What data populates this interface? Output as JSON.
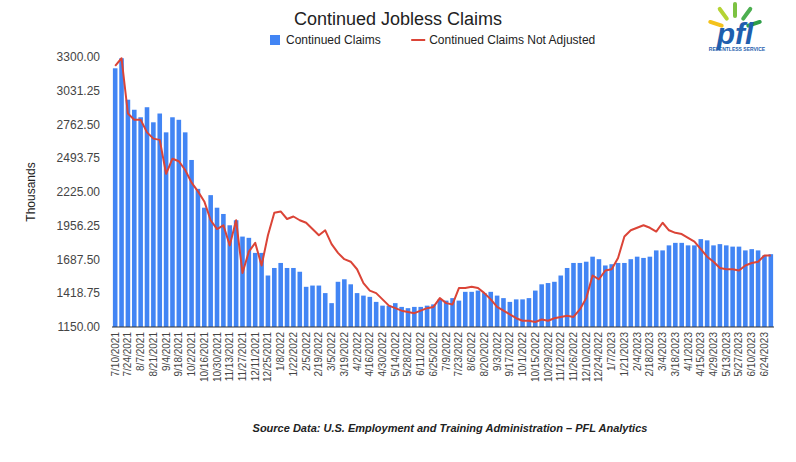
{
  "chart_data": {
    "type": "bar",
    "title": "Continued Jobless Claims",
    "y_label": "Thousands",
    "annotations": [
      "Source Data: U.S. Employment and Training Administration – PFL Analytics",
      "pfl",
      "RELENTLESS SERVICE"
    ],
    "categories": [
      "7/10/2021",
      null,
      "7/24/2021",
      null,
      "8/7/2021",
      null,
      "8/21/2021",
      null,
      "9/4/2021",
      null,
      "9/18/2021",
      null,
      "10/2/2021",
      null,
      "10/16/2021",
      null,
      "10/30/2021",
      null,
      "11/13/2021",
      null,
      "11/27/2021",
      null,
      "12/11/2021",
      null,
      "12/25/2021",
      null,
      "1/8/2022",
      null,
      "1/22/2022",
      null,
      "2/5/2022",
      null,
      "2/19/2022",
      null,
      "3/5/2022",
      null,
      "3/19/2022",
      null,
      "4/2/2022",
      null,
      "4/16/2022",
      null,
      "4/30/2022",
      null,
      "5/14/2022",
      null,
      "5/28/2022",
      null,
      "6/11/2022",
      null,
      "6/25/2022",
      null,
      "7/9/2022",
      null,
      "7/23/2022",
      null,
      "8/6/2022",
      null,
      "8/20/2022",
      null,
      "9/3/2022",
      null,
      "9/17/2022",
      null,
      "10/1/2022",
      null,
      "10/15/2022",
      null,
      "10/29/2022",
      null,
      "11/12/2022",
      null,
      "11/26/2022",
      null,
      "12/10/2022",
      null,
      "12/24/2022",
      null,
      "1/7/2023",
      null,
      "1/21/2023",
      null,
      "2/4/2023",
      null,
      "2/18/2023",
      null,
      "3/4/2023",
      null,
      "3/18/2023",
      null,
      "4/1/2023",
      null,
      "4/15/2023",
      null,
      "4/29/2023",
      null,
      "5/13/2023",
      null,
      "5/27/2023",
      null,
      "6/10/2023",
      null,
      "6/24/2023",
      null
    ],
    "series": [
      {
        "name": "Continued Claims",
        "type": "bar",
        "color": "#4285f4",
        "values": [
          3210,
          3290,
          2960,
          2880,
          2820,
          2900,
          2780,
          2850,
          2700,
          2820,
          2800,
          2700,
          2480,
          2250,
          2100,
          2200,
          2100,
          2050,
          1960,
          2000,
          1870,
          1860,
          1740,
          1740,
          1560,
          1620,
          1660,
          1620,
          1620,
          1590,
          1470,
          1480,
          1480,
          1420,
          1340,
          1510,
          1530,
          1490,
          1420,
          1400,
          1390,
          1350,
          1320,
          1320,
          1340,
          1310,
          1300,
          1310,
          1310,
          1320,
          1330,
          1370,
          1360,
          1380,
          1360,
          1430,
          1430,
          1440,
          1420,
          1430,
          1400,
          1380,
          1350,
          1370,
          1370,
          1380,
          1440,
          1490,
          1500,
          1510,
          1560,
          1620,
          1660,
          1660,
          1670,
          1710,
          1690,
          1640,
          1650,
          1660,
          1660,
          1690,
          1710,
          1700,
          1710,
          1760,
          1760,
          1800,
          1820,
          1820,
          1800,
          1800,
          1850,
          1840,
          1800,
          1810,
          1800,
          1790,
          1790,
          1760,
          1770,
          1760,
          1720,
          1730
        ]
      },
      {
        "name": "Continued Claims Not Adjusted",
        "type": "line",
        "color": "#db4437",
        "values": [
          3230,
          3290,
          2850,
          2800,
          2800,
          2700,
          2650,
          2640,
          2370,
          2490,
          2470,
          2400,
          2300,
          2230,
          2150,
          2000,
          1930,
          1960,
          1800,
          2000,
          1580,
          1750,
          1820,
          1640,
          1880,
          2060,
          2070,
          2010,
          2030,
          2000,
          1980,
          1930,
          1880,
          1920,
          1810,
          1740,
          1690,
          1670,
          1610,
          1500,
          1440,
          1420,
          1370,
          1320,
          1300,
          1280,
          1270,
          1260,
          1280,
          1300,
          1310,
          1380,
          1340,
          1330,
          1460,
          1460,
          1470,
          1460,
          1420,
          1370,
          1310,
          1280,
          1250,
          1220,
          1200,
          1200,
          1190,
          1210,
          1200,
          1220,
          1230,
          1240,
          1230,
          1290,
          1380,
          1560,
          1530,
          1600,
          1610,
          1700,
          1870,
          1920,
          1940,
          1960,
          1940,
          1910,
          1980,
          1920,
          1900,
          1890,
          1860,
          1830,
          1770,
          1710,
          1670,
          1620,
          1610,
          1610,
          1600,
          1640,
          1660,
          1670,
          1720,
          1720
        ]
      }
    ],
    "ylim": [
      1150,
      3300
    ],
    "yticks": [
      {
        "value": 1150,
        "label": "1150.00"
      },
      {
        "value": 1418.75,
        "label": "1418.75"
      },
      {
        "value": 1687.5,
        "label": "1687.50"
      },
      {
        "value": 1956.25,
        "label": "1956.25"
      },
      {
        "value": 2225,
        "label": "2225.00"
      },
      {
        "value": 2493.75,
        "label": "2493.75"
      },
      {
        "value": 2762.5,
        "label": "2762.50"
      },
      {
        "value": 3031.25,
        "label": "3031.25"
      },
      {
        "value": 3300,
        "label": "3300.00"
      }
    ],
    "grid": false,
    "legend": "top"
  }
}
